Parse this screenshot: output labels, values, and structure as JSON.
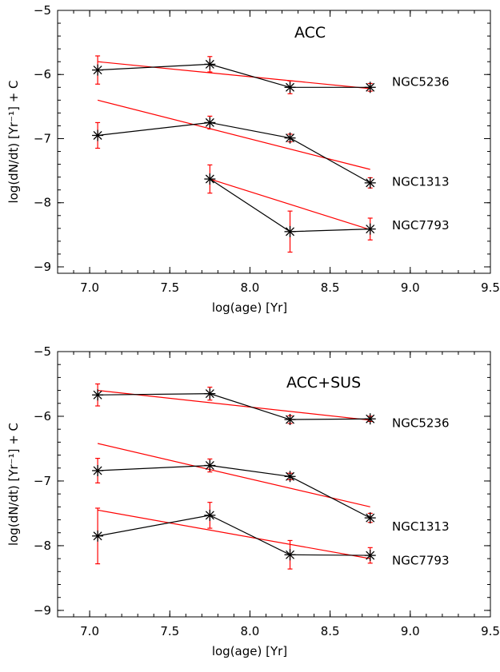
{
  "chart_data": [
    {
      "type": "line",
      "annotation": "ACC",
      "xlabel": "log(age) [Yr]",
      "ylabel": "log(dN/dt) [Yr⁻¹] + C",
      "xlim": [
        6.8,
        9.5
      ],
      "ylim": [
        -9.1,
        -5
      ],
      "xticks": [
        "7.0",
        "7.5",
        "8.0",
        "8.5",
        "9.0",
        "9.5"
      ],
      "yticks": [
        "−5",
        "−6",
        "−7",
        "−8",
        "−9"
      ],
      "grid": false,
      "series": [
        {
          "name": "NGC5236",
          "x": [
            7.05,
            7.75,
            8.25,
            8.75
          ],
          "y": [
            -5.93,
            -5.84,
            -6.2,
            -6.2
          ],
          "yerr": [
            0.22,
            0.12,
            0.1,
            0.06
          ],
          "fit": [
            [
              7.05,
              -5.8
            ],
            [
              8.75,
              -6.22
            ]
          ]
        },
        {
          "name": "NGC1313",
          "x": [
            7.05,
            7.75,
            8.25,
            8.75
          ],
          "y": [
            -6.95,
            -6.75,
            -6.99,
            -7.69
          ],
          "yerr": [
            0.2,
            0.1,
            0.06,
            0.08
          ],
          "fit": [
            [
              7.05,
              -6.4
            ],
            [
              8.75,
              -7.48
            ]
          ]
        },
        {
          "name": "NGC7793",
          "x": [
            7.75,
            8.25,
            8.75
          ],
          "y": [
            -7.63,
            -8.45,
            -8.41
          ],
          "yerr": [
            0.22,
            0.32,
            0.17
          ],
          "fit": [
            [
              7.75,
              -7.63
            ],
            [
              8.75,
              -8.42
            ]
          ]
        }
      ],
      "colors": {
        "data": "#000000",
        "fit": "#ff0000",
        "errorbar": "#ff0000"
      }
    },
    {
      "type": "line",
      "annotation": "ACC+SUS",
      "xlabel": "log(age) [Yr]",
      "ylabel": "log(dN/dt) [Yr⁻¹] + C",
      "xlim": [
        6.8,
        9.5
      ],
      "ylim": [
        -9.1,
        -5
      ],
      "xticks": [
        "7.0",
        "7.5",
        "8.0",
        "8.5",
        "9.0",
        "9.5"
      ],
      "yticks": [
        "−5",
        "−6",
        "−7",
        "−8",
        "−9"
      ],
      "grid": false,
      "series": [
        {
          "name": "NGC5236",
          "x": [
            7.05,
            7.75,
            8.25,
            8.75
          ],
          "y": [
            -5.67,
            -5.65,
            -6.05,
            -6.04
          ],
          "yerr": [
            0.17,
            0.1,
            0.06,
            0.04
          ],
          "fit": [
            [
              7.05,
              -5.6
            ],
            [
              8.75,
              -6.06
            ]
          ]
        },
        {
          "name": "NGC1313",
          "x": [
            7.05,
            7.75,
            8.25,
            8.75
          ],
          "y": [
            -6.84,
            -6.76,
            -6.93,
            -7.57
          ],
          "yerr": [
            0.19,
            0.1,
            0.05,
            0.07
          ],
          "fit": [
            [
              7.05,
              -6.42
            ],
            [
              8.75,
              -7.4
            ]
          ]
        },
        {
          "name": "NGC7793",
          "x": [
            7.05,
            7.75,
            8.25,
            8.75
          ],
          "y": [
            -7.85,
            -7.53,
            -8.14,
            -8.15
          ],
          "yerr": [
            0.43,
            0.2,
            0.22,
            0.12
          ],
          "fit": [
            [
              7.05,
              -7.45
            ],
            [
              8.75,
              -8.2
            ]
          ]
        }
      ],
      "colors": {
        "data": "#000000",
        "fit": "#ff0000",
        "errorbar": "#ff0000"
      }
    }
  ]
}
